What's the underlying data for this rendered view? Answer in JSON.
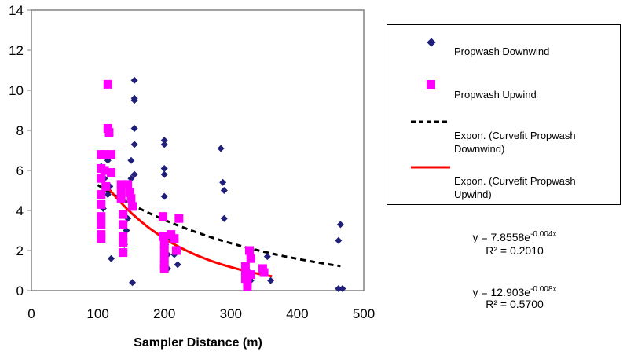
{
  "chart_data": {
    "type": "scatter",
    "xlabel": "Sampler Distance (m)",
    "ylabel": "",
    "xlim": [
      0,
      500
    ],
    "ylim": [
      0,
      14
    ],
    "x_ticks": [
      "0",
      "100",
      "200",
      "300",
      "400",
      "500"
    ],
    "y_ticks": [
      "0",
      "2",
      "4",
      "6",
      "8",
      "10",
      "12",
      "14"
    ],
    "grid": false,
    "legend_position": "right",
    "series": [
      {
        "name": "Propwash Downwind",
        "marker": "diamond",
        "color": "#1f1f7a",
        "points": [
          [
            105,
            6.2
          ],
          [
            110,
            5.6
          ],
          [
            115,
            4.8
          ],
          [
            120,
            1.6
          ],
          [
            115,
            6.5
          ],
          [
            118,
            5.2
          ],
          [
            108,
            4.1
          ],
          [
            140,
            2.3
          ],
          [
            143,
            3.0
          ],
          [
            145,
            3.6
          ],
          [
            148,
            4.9
          ],
          [
            150,
            5.6
          ],
          [
            150,
            6.5
          ],
          [
            152,
            0.4
          ],
          [
            155,
            10.5
          ],
          [
            155,
            9.5
          ],
          [
            155,
            9.6
          ],
          [
            155,
            8.1
          ],
          [
            155,
            7.3
          ],
          [
            155,
            5.8
          ],
          [
            200,
            7.5
          ],
          [
            200,
            7.3
          ],
          [
            200,
            6.1
          ],
          [
            200,
            5.8
          ],
          [
            200,
            4.7
          ],
          [
            202,
            2.3
          ],
          [
            205,
            1.8
          ],
          [
            205,
            1.1
          ],
          [
            210,
            2.6
          ],
          [
            215,
            1.8
          ],
          [
            220,
            1.3
          ],
          [
            285,
            7.1
          ],
          [
            288,
            5.4
          ],
          [
            290,
            5.0
          ],
          [
            290,
            3.6
          ],
          [
            325,
            1.0
          ],
          [
            330,
            0.5
          ],
          [
            350,
            1.0
          ],
          [
            355,
            1.7
          ],
          [
            360,
            0.5
          ],
          [
            465,
            3.3
          ],
          [
            462,
            2.5
          ],
          [
            462,
            0.1
          ],
          [
            468,
            0.1
          ]
        ]
      },
      {
        "name": "Propwash Upwind",
        "marker": "square",
        "color": "#ff00ff",
        "points": [
          [
            105,
            6.8
          ],
          [
            105,
            6.1
          ],
          [
            105,
            5.6
          ],
          [
            105,
            4.8
          ],
          [
            105,
            4.3
          ],
          [
            105,
            3.7
          ],
          [
            105,
            3.3
          ],
          [
            105,
            2.8
          ],
          [
            105,
            2.6
          ],
          [
            110,
            6.8
          ],
          [
            110,
            6.0
          ],
          [
            112,
            5.2
          ],
          [
            115,
            10.3
          ],
          [
            115,
            8.1
          ],
          [
            117,
            7.9
          ],
          [
            120,
            6.8
          ],
          [
            120,
            5.9
          ],
          [
            135,
            5.3
          ],
          [
            135,
            5.0
          ],
          [
            135,
            4.6
          ],
          [
            138,
            3.8
          ],
          [
            138,
            3.3
          ],
          [
            138,
            2.7
          ],
          [
            138,
            2.4
          ],
          [
            138,
            1.9
          ],
          [
            145,
            5.3
          ],
          [
            148,
            4.9
          ],
          [
            150,
            4.6
          ],
          [
            152,
            4.2
          ],
          [
            198,
            3.7
          ],
          [
            198,
            2.7
          ],
          [
            200,
            2.3
          ],
          [
            200,
            2.0
          ],
          [
            200,
            1.6
          ],
          [
            200,
            1.3
          ],
          [
            200,
            1.1
          ],
          [
            210,
            2.8
          ],
          [
            215,
            2.6
          ],
          [
            218,
            2.0
          ],
          [
            222,
            3.6
          ],
          [
            322,
            1.2
          ],
          [
            322,
            0.9
          ],
          [
            322,
            0.6
          ],
          [
            325,
            0.4
          ],
          [
            325,
            0.2
          ],
          [
            328,
            2.0
          ],
          [
            330,
            1.6
          ],
          [
            330,
            0.8
          ],
          [
            348,
            1.1
          ],
          [
            350,
            0.9
          ]
        ]
      },
      {
        "name": "Expon. (Curvefit Propwash Downwind)",
        "type": "line",
        "style": "dashed",
        "color": "#000000",
        "x": [
          100,
          465
        ],
        "equation": "y = 7.8558e-0.004x",
        "a": 7.8558,
        "b": -0.004
      },
      {
        "name": "Expon. (Curvefit Propwash Upwind)",
        "type": "line",
        "style": "solid",
        "color": "#ff0000",
        "x": [
          105,
          362
        ],
        "equation": "y = 12.903e-0.008x",
        "a": 12.903,
        "b": -0.008
      }
    ],
    "annotations": [
      {
        "label": "y = 7.8558e",
        "exp": "-0.004x",
        "r2": "R² = 0.2010"
      },
      {
        "label": "y = 12.903e",
        "exp": "-0.008x",
        "r2": "R² = 0.5700"
      }
    ]
  },
  "legend": {
    "items": [
      {
        "label": "Propwash Downwind",
        "marker": "diamond",
        "color": "#1f1f7a"
      },
      {
        "label": "Propwash Upwind",
        "marker": "square",
        "color": "#ff00ff"
      },
      {
        "label": "Expon. (Curvefit Propwash Downwind)",
        "marker": "dashed-line",
        "color": "#000000"
      },
      {
        "label": "Expon. (Curvefit Propwash Upwind)",
        "marker": "solid-line",
        "color": "#ff0000"
      }
    ]
  }
}
